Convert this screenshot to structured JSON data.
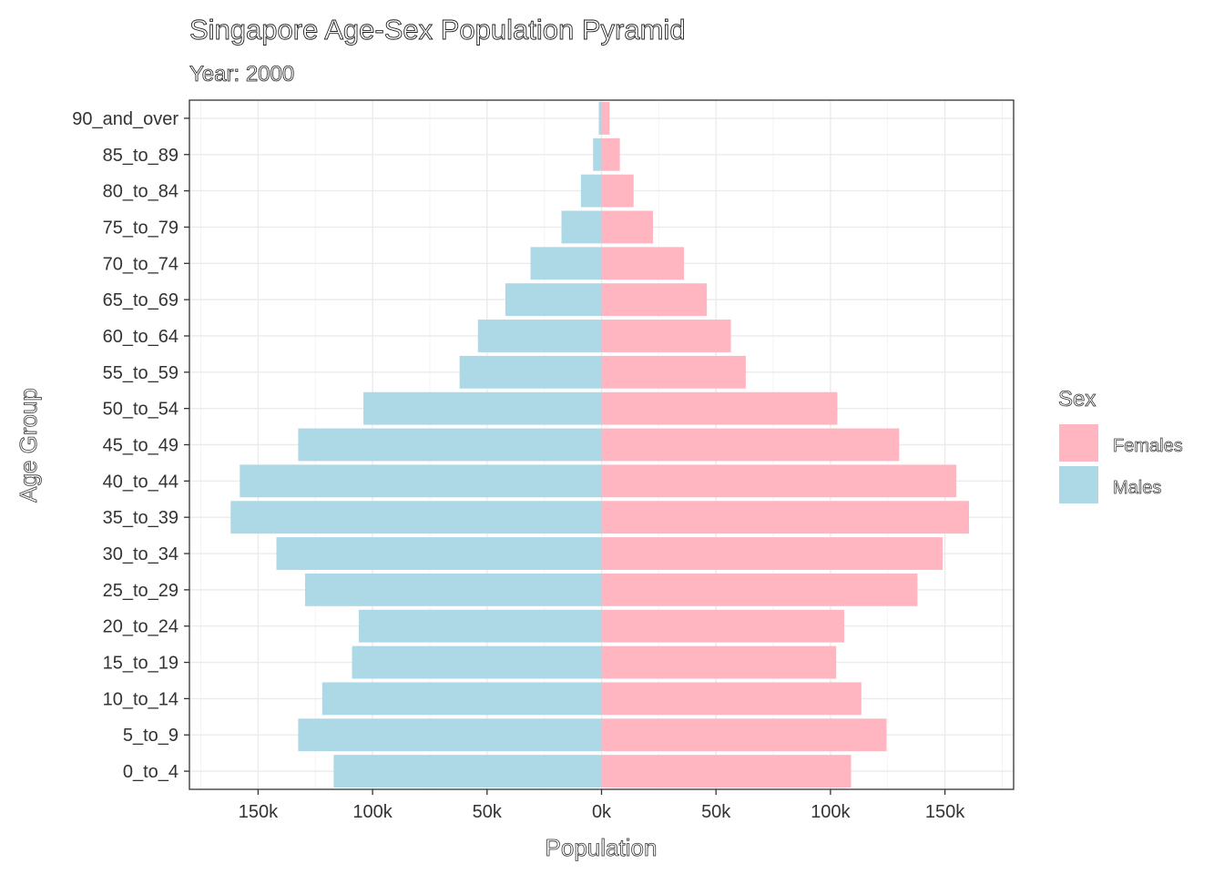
{
  "chart_data": {
    "type": "bar",
    "orientation": "horizontal",
    "title": "Singapore Age-Sex Population Pyramid",
    "subtitle": "Year: 2000",
    "xlabel": "Population",
    "ylabel": "Age Group",
    "xlim": [
      -180000,
      180000
    ],
    "x_ticks": [
      -150000,
      -100000,
      -50000,
      0,
      50000,
      100000,
      150000
    ],
    "x_tick_labels": [
      "150k",
      "100k",
      "50k",
      "0k",
      "50k",
      "100k",
      "150k"
    ],
    "grid": true,
    "legend": {
      "title": "Sex",
      "position": "right",
      "entries": [
        {
          "label": "Females",
          "color": "#ffb6c1"
        },
        {
          "label": "Males",
          "color": "#add8e6"
        }
      ]
    },
    "categories": [
      "0_to_4",
      "5_to_9",
      "10_to_14",
      "15_to_19",
      "20_to_24",
      "25_to_29",
      "30_to_34",
      "35_to_39",
      "40_to_44",
      "45_to_49",
      "50_to_54",
      "55_to_59",
      "60_to_64",
      "65_to_69",
      "70_to_74",
      "75_to_79",
      "80_to_84",
      "85_to_89",
      "90_and_over"
    ],
    "series": [
      {
        "name": "Males",
        "color": "#add8e6",
        "values": [
          -117000,
          -132500,
          -122000,
          -109000,
          -106000,
          -129500,
          -142000,
          -162000,
          -158000,
          -132500,
          -104000,
          -62000,
          -54000,
          -42000,
          -31000,
          -17500,
          -9000,
          -3700,
          -1200
        ]
      },
      {
        "name": "Females",
        "color": "#ffb6c1",
        "values": [
          109000,
          124500,
          113500,
          102500,
          106000,
          138000,
          149000,
          160500,
          155000,
          130000,
          103000,
          63000,
          56500,
          46000,
          36000,
          22500,
          14000,
          8000,
          3500
        ]
      }
    ]
  }
}
